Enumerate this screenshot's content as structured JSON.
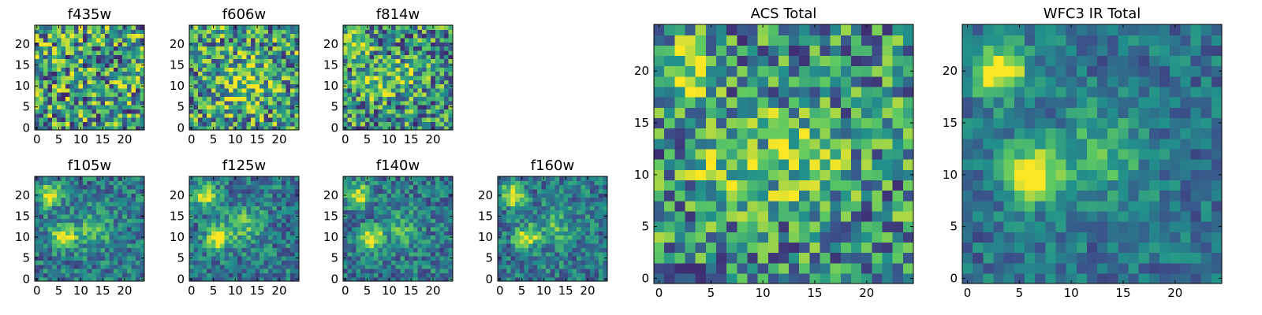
{
  "chart_data": [
    {
      "type": "heatmap",
      "title": "f435w",
      "panel": "small",
      "row": 0,
      "col": 0,
      "xlim": [
        0,
        25
      ],
      "ylim": [
        0,
        25
      ],
      "xticks": [
        0,
        5,
        10,
        15,
        20
      ],
      "yticks": [
        0,
        5,
        10,
        15,
        20
      ],
      "blobs": [],
      "noise": 0.9,
      "base": 0.55,
      "seed": 11
    },
    {
      "type": "heatmap",
      "title": "f606w",
      "panel": "small",
      "row": 0,
      "col": 1,
      "xlim": [
        0,
        25
      ],
      "ylim": [
        0,
        25
      ],
      "xticks": [
        0,
        5,
        10,
        15,
        20
      ],
      "yticks": [
        0,
        5,
        10,
        15,
        20
      ],
      "blobs": [
        [
          12,
          11,
          0.3,
          4
        ]
      ],
      "noise": 0.85,
      "base": 0.55,
      "seed": 23
    },
    {
      "type": "heatmap",
      "title": "f814w",
      "panel": "small",
      "row": 0,
      "col": 2,
      "xlim": [
        0,
        25
      ],
      "ylim": [
        0,
        25
      ],
      "xticks": [
        0,
        5,
        10,
        15,
        20
      ],
      "yticks": [
        0,
        5,
        10,
        15,
        20
      ],
      "blobs": [
        [
          3,
          20,
          0.45,
          2
        ],
        [
          6,
          10,
          0.35,
          2
        ],
        [
          13,
          12,
          0.25,
          3
        ]
      ],
      "noise": 0.8,
      "base": 0.5,
      "seed": 37
    },
    {
      "type": "heatmap",
      "title": "f105w",
      "panel": "small",
      "row": 1,
      "col": 0,
      "xlim": [
        0,
        25
      ],
      "ylim": [
        0,
        25
      ],
      "xticks": [
        0,
        5,
        10,
        15,
        20
      ],
      "yticks": [
        0,
        5,
        10,
        15,
        20
      ],
      "blobs": [
        [
          3,
          20,
          0.6,
          1.8
        ],
        [
          6,
          10,
          0.65,
          1.8
        ],
        [
          13,
          12,
          0.3,
          3
        ]
      ],
      "noise": 0.45,
      "base": 0.4,
      "seed": 41
    },
    {
      "type": "heatmap",
      "title": "f125w",
      "panel": "small",
      "row": 1,
      "col": 1,
      "xlim": [
        0,
        25
      ],
      "ylim": [
        0,
        25
      ],
      "xticks": [
        0,
        5,
        10,
        15,
        20
      ],
      "yticks": [
        0,
        5,
        10,
        15,
        20
      ],
      "blobs": [
        [
          3,
          20,
          0.6,
          1.8
        ],
        [
          6,
          10,
          0.65,
          1.8
        ],
        [
          12,
          13,
          0.3,
          3
        ]
      ],
      "noise": 0.45,
      "base": 0.4,
      "seed": 53
    },
    {
      "type": "heatmap",
      "title": "f140w",
      "panel": "small",
      "row": 1,
      "col": 2,
      "xlim": [
        0,
        25
      ],
      "ylim": [
        0,
        25
      ],
      "xticks": [
        0,
        5,
        10,
        15,
        20
      ],
      "yticks": [
        0,
        5,
        10,
        15,
        20
      ],
      "blobs": [
        [
          3,
          20,
          0.6,
          1.8
        ],
        [
          6,
          10,
          0.6,
          1.8
        ],
        [
          13,
          12,
          0.25,
          3
        ]
      ],
      "noise": 0.45,
      "base": 0.4,
      "seed": 67
    },
    {
      "type": "heatmap",
      "title": "f160w",
      "panel": "small",
      "row": 1,
      "col": 3,
      "xlim": [
        0,
        25
      ],
      "ylim": [
        0,
        25
      ],
      "xticks": [
        0,
        5,
        10,
        15,
        20
      ],
      "yticks": [
        0,
        5,
        10,
        15,
        20
      ],
      "blobs": [
        [
          3,
          20,
          0.6,
          1.8
        ],
        [
          6,
          10,
          0.6,
          1.8
        ],
        [
          13,
          12,
          0.25,
          3
        ]
      ],
      "noise": 0.45,
      "base": 0.4,
      "seed": 79
    },
    {
      "type": "heatmap",
      "title": "ACS Total",
      "panel": "large",
      "col": 0,
      "xlim": [
        0,
        25
      ],
      "ylim": [
        0,
        25
      ],
      "xticks": [
        0,
        5,
        10,
        15,
        20
      ],
      "yticks": [
        0,
        5,
        10,
        15,
        20
      ],
      "blobs": [
        [
          3,
          20,
          0.35,
          2
        ],
        [
          6,
          10,
          0.3,
          2
        ],
        [
          13,
          12,
          0.3,
          3
        ]
      ],
      "noise": 0.75,
      "base": 0.5,
      "seed": 97
    },
    {
      "type": "heatmap",
      "title": "WFC3 IR Total",
      "panel": "large",
      "col": 1,
      "xlim": [
        0,
        25
      ],
      "ylim": [
        0,
        25
      ],
      "xticks": [
        0,
        5,
        10,
        15,
        20
      ],
      "yticks": [
        0,
        5,
        10,
        15,
        20
      ],
      "blobs": [
        [
          3,
          20,
          0.7,
          1.8
        ],
        [
          6,
          10,
          0.7,
          1.8
        ],
        [
          13,
          12,
          0.3,
          3
        ]
      ],
      "noise": 0.35,
      "base": 0.38,
      "seed": 101
    }
  ],
  "colormap": {
    "name": "viridis",
    "stops": [
      "#440154",
      "#3b528b",
      "#21918c",
      "#5ec962",
      "#fde725"
    ]
  }
}
